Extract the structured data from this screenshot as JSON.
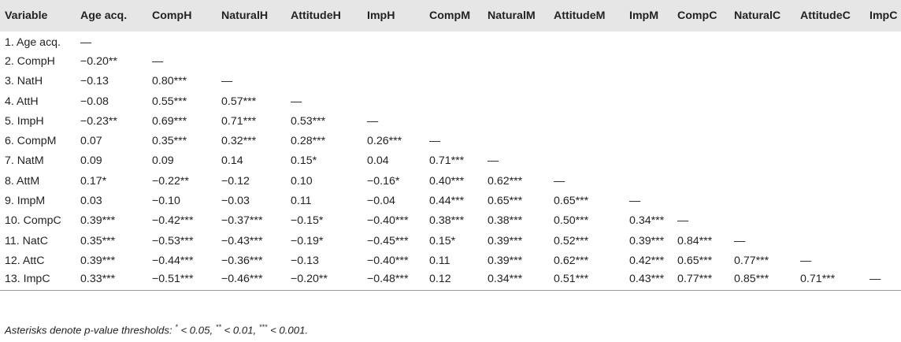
{
  "table": {
    "columns": [
      "Variable",
      "Age acq.",
      "CompH",
      "NaturalH",
      "AttitudeH",
      "ImpH",
      "CompM",
      "NaturalM",
      "AttitudeM",
      "ImpM",
      "CompC",
      "NaturalC",
      "AttitudeC",
      "ImpC"
    ],
    "rows": [
      [
        "1. Age acq.",
        "—",
        "",
        "",
        "",
        "",
        "",
        "",
        "",
        "",
        "",
        "",
        "",
        ""
      ],
      [
        "2. CompH",
        "−0.20**",
        "—",
        "",
        "",
        "",
        "",
        "",
        "",
        "",
        "",
        "",
        "",
        ""
      ],
      [
        "3. NatH",
        "−0.13",
        "0.80***",
        "—",
        "",
        "",
        "",
        "",
        "",
        "",
        "",
        "",
        "",
        ""
      ],
      [
        "4. AttH",
        "−0.08",
        "0.55***",
        "0.57***",
        "—",
        "",
        "",
        "",
        "",
        "",
        "",
        "",
        "",
        ""
      ],
      [
        "5. ImpH",
        "−0.23**",
        "0.69***",
        "0.71***",
        "0.53***",
        "—",
        "",
        "",
        "",
        "",
        "",
        "",
        "",
        ""
      ],
      [
        "6. CompM",
        "0.07",
        "0.35***",
        "0.32***",
        "0.28***",
        "0.26***",
        "—",
        "",
        "",
        "",
        "",
        "",
        "",
        ""
      ],
      [
        "7. NatM",
        "0.09",
        "0.09",
        "0.14",
        "0.15*",
        "0.04",
        "0.71***",
        "—",
        "",
        "",
        "",
        "",
        "",
        ""
      ],
      [
        "8. AttM",
        "0.17*",
        "−0.22**",
        "−0.12",
        "0.10",
        "−0.16*",
        "0.40***",
        "0.62***",
        "—",
        "",
        "",
        "",
        "",
        ""
      ],
      [
        "9. ImpM",
        "0.03",
        "−0.10",
        "−0.03",
        "0.11",
        "−0.04",
        "0.44***",
        "0.65***",
        "0.65***",
        "—",
        "",
        "",
        "",
        ""
      ],
      [
        "10. CompC",
        "0.39***",
        "−0.42***",
        "−0.37***",
        "−0.15*",
        "−0.40***",
        "0.38***",
        "0.38***",
        "0.50***",
        "0.34***",
        "—",
        "",
        "",
        ""
      ],
      [
        "11. NatC",
        "0.35***",
        "−0.53***",
        "−0.43***",
        "−0.19*",
        "−0.45***",
        "0.15*",
        "0.39***",
        "0.52***",
        "0.39***",
        "0.84***",
        "—",
        "",
        ""
      ],
      [
        "12. AttC",
        "0.39***",
        "−0.44***",
        "−0.36***",
        "−0.13",
        "−0.40***",
        "0.11",
        "0.39***",
        "0.62***",
        "0.42***",
        "0.65***",
        "0.77***",
        "—",
        ""
      ],
      [
        "13. ImpC",
        "0.33***",
        "−0.51***",
        "−0.46***",
        "−0.20**",
        "−0.48***",
        "0.12",
        "0.34***",
        "0.51***",
        "0.43***",
        "0.77***",
        "0.85***",
        "0.71***",
        "—"
      ]
    ]
  },
  "footnote": {
    "prefix": "Asterisks denote p-value thresholds:",
    "t1_mark": "*",
    "t1_text": "< 0.05,",
    "t2_mark": "**",
    "t2_text": "< 0.01,",
    "t3_mark": "***",
    "t3_text": "< 0.001."
  }
}
